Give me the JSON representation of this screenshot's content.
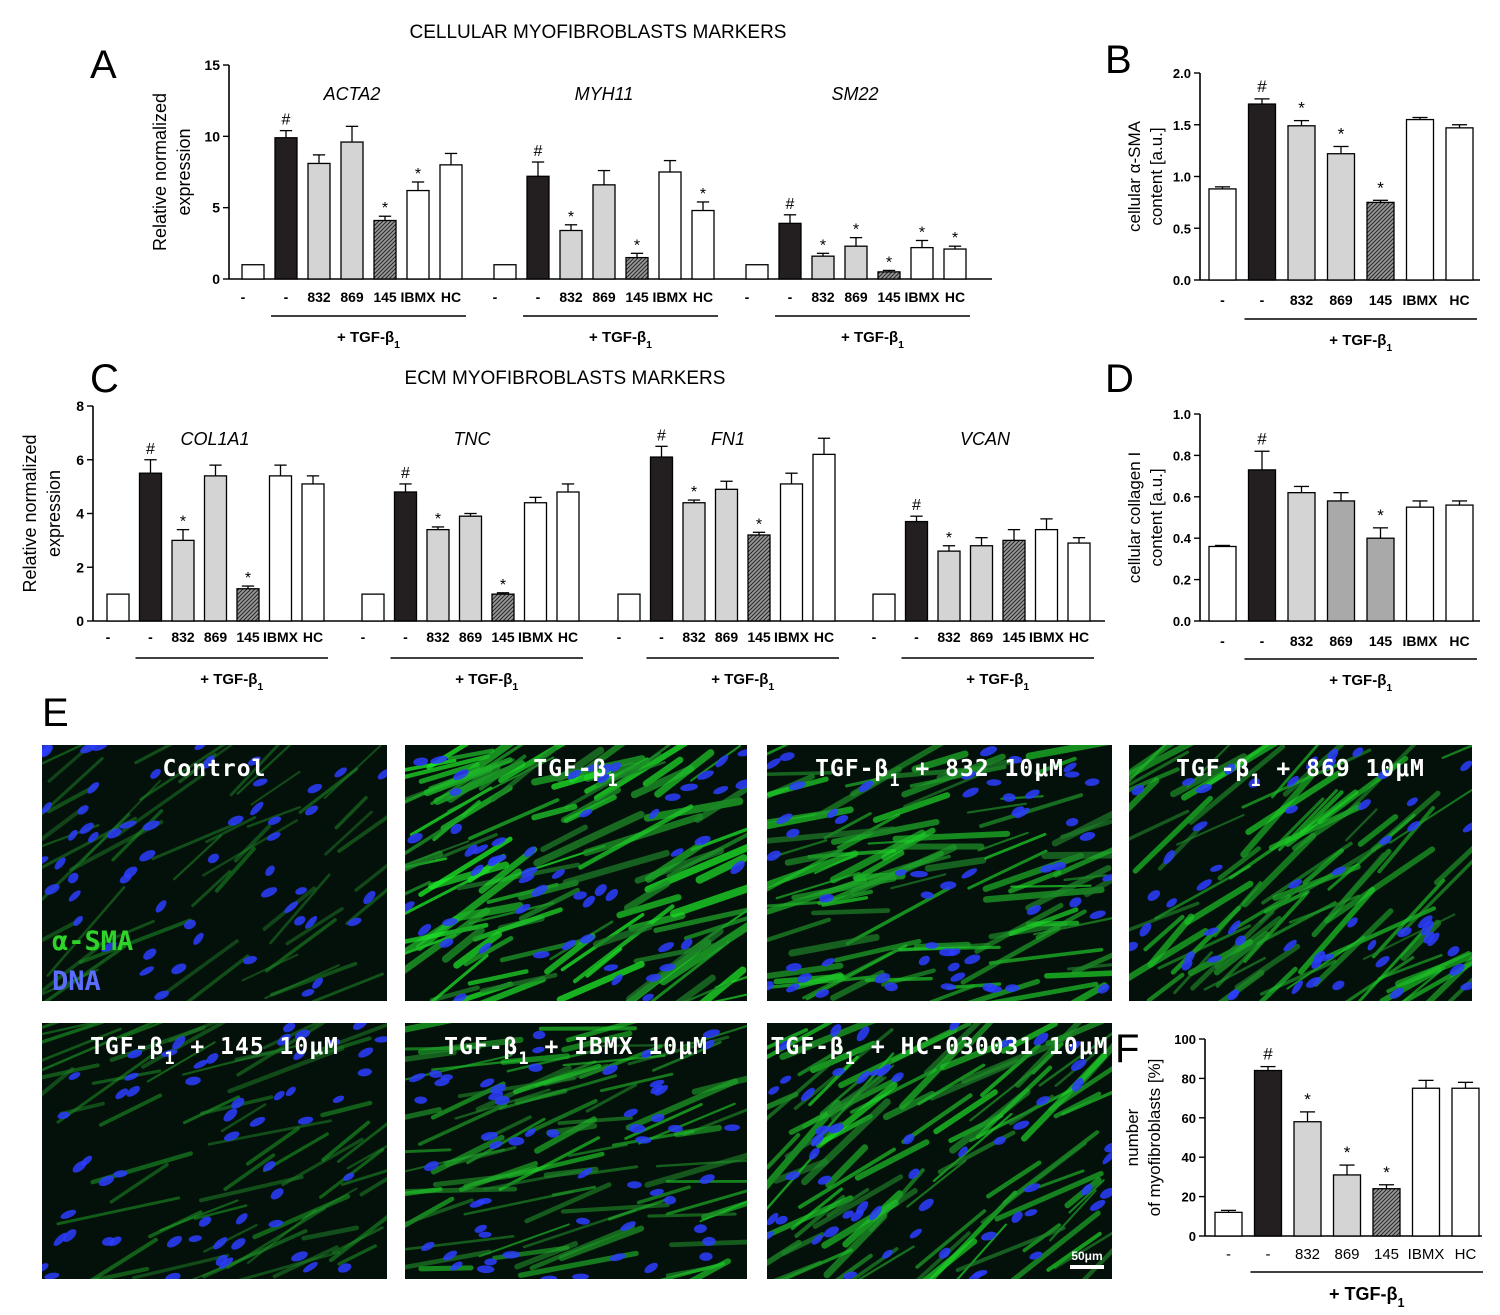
{
  "figure": {
    "section_titles": {
      "cellular": "CELLULAR MYOFIBROBLASTS MARKERS",
      "ecm": "ECM MYOFIBROBLASTS MARKERS"
    },
    "panel_letters": {
      "A": "A",
      "B": "B",
      "C": "C",
      "D": "D",
      "E": "E",
      "F": "F"
    },
    "group_label": "+ TGF-β",
    "group_label_sub": "1",
    "colors": {
      "control": "#ffffff",
      "tgf": "#231f20",
      "light_grey": "#d4d4d4",
      "mid_grey": "#a9a9a9",
      "hatched": "#5a5a5a",
      "fluor_green": "#2fd32a",
      "fluor_blue": "#2b3dff",
      "stroke": "#000000"
    }
  },
  "chart_data": [
    {
      "id": "A",
      "type": "bar",
      "ylabel": "Relative normalized\nexpression",
      "ylim": [
        0,
        15
      ],
      "yticks": [
        0,
        5,
        10,
        15
      ],
      "categories": [
        "-",
        "-",
        "832",
        "869",
        "145",
        "IBMX",
        "HC"
      ],
      "series": [
        {
          "name": "ACTA2",
          "values": [
            1,
            9.9,
            8.1,
            9.6,
            4.1,
            6.2,
            8.0
          ],
          "errors": [
            0,
            0.5,
            0.6,
            1.1,
            0.3,
            0.6,
            0.8
          ],
          "marks": [
            "",
            "#",
            "",
            "",
            "*",
            "*",
            ""
          ]
        },
        {
          "name": "MYH11",
          "values": [
            1,
            7.2,
            3.4,
            6.6,
            1.5,
            7.5,
            4.8
          ],
          "errors": [
            0,
            1.0,
            0.4,
            1.0,
            0.3,
            0.8,
            0.6
          ],
          "marks": [
            "",
            "#",
            "*",
            "",
            "*",
            "",
            "*"
          ]
        },
        {
          "name": "SM22",
          "values": [
            1,
            3.9,
            1.6,
            2.3,
            0.5,
            2.2,
            2.1
          ],
          "errors": [
            0,
            0.6,
            0.2,
            0.6,
            0.1,
            0.5,
            0.2
          ],
          "marks": [
            "",
            "#",
            "*",
            "*",
            "*",
            "*",
            "*"
          ]
        }
      ]
    },
    {
      "id": "B",
      "type": "bar",
      "ylabel": "cellular α-SMA\ncontent [a.u.]",
      "ylim": [
        0,
        2.0
      ],
      "yticks": [
        "0.0",
        "0.5",
        "1.0",
        "1.5",
        "2.0"
      ],
      "categories": [
        "-",
        "-",
        "832",
        "869",
        "145",
        "IBMX",
        "HC"
      ],
      "values": [
        0.88,
        1.7,
        1.49,
        1.22,
        0.75,
        1.55,
        1.47
      ],
      "errors": [
        0.02,
        0.05,
        0.05,
        0.07,
        0.02,
        0.02,
        0.03
      ],
      "marks": [
        "",
        "#",
        "*",
        "*",
        "*",
        "",
        ""
      ]
    },
    {
      "id": "C",
      "type": "bar",
      "ylabel": "Relative normalized\nexpression",
      "ylim": [
        0,
        8
      ],
      "yticks": [
        0,
        2,
        4,
        6,
        8
      ],
      "categories": [
        "-",
        "-",
        "832",
        "869",
        "145",
        "IBMX",
        "HC"
      ],
      "series": [
        {
          "name": "COL1A1",
          "values": [
            1,
            5.5,
            3.0,
            5.4,
            1.2,
            5.4,
            5.1
          ],
          "errors": [
            0,
            0.5,
            0.4,
            0.4,
            0.1,
            0.4,
            0.3
          ],
          "marks": [
            "",
            "#",
            "*",
            "",
            "*",
            "",
            ""
          ]
        },
        {
          "name": "TNC",
          "values": [
            1,
            4.8,
            3.4,
            3.9,
            1.0,
            4.4,
            4.8
          ],
          "errors": [
            0,
            0.3,
            0.1,
            0.1,
            0.05,
            0.2,
            0.3
          ],
          "marks": [
            "",
            "#",
            "*",
            "",
            "*",
            "",
            ""
          ]
        },
        {
          "name": "FN1",
          "values": [
            1,
            6.1,
            4.4,
            4.9,
            3.2,
            5.1,
            6.2
          ],
          "errors": [
            0,
            0.4,
            0.1,
            0.3,
            0.1,
            0.4,
            0.6
          ],
          "marks": [
            "",
            "#",
            "*",
            "",
            "*",
            "",
            ""
          ]
        },
        {
          "name": "VCAN",
          "values": [
            1,
            3.7,
            2.6,
            2.8,
            3.0,
            3.4,
            2.9
          ],
          "errors": [
            0,
            0.2,
            0.2,
            0.3,
            0.4,
            0.4,
            0.2
          ],
          "marks": [
            "",
            "#",
            "*",
            "",
            "",
            "",
            ""
          ]
        }
      ]
    },
    {
      "id": "D",
      "type": "bar",
      "ylabel": "cellular collagen I\ncontent [a.u.]",
      "ylim": [
        0,
        1.0
      ],
      "yticks": [
        "0.0",
        "0.2",
        "0.4",
        "0.6",
        "0.8",
        "1.0"
      ],
      "categories": [
        "-",
        "-",
        "832",
        "869",
        "145",
        "IBMX",
        "HC"
      ],
      "values": [
        0.36,
        0.73,
        0.62,
        0.58,
        0.4,
        0.55,
        0.56
      ],
      "errors": [
        0.005,
        0.09,
        0.03,
        0.04,
        0.05,
        0.03,
        0.02
      ],
      "marks": [
        "",
        "#",
        "",
        "",
        "*",
        "",
        ""
      ]
    },
    {
      "id": "F",
      "type": "bar",
      "ylabel": "number\nof myofibroblasts [%]",
      "ylim": [
        0,
        100
      ],
      "yticks": [
        0,
        20,
        40,
        60,
        80,
        100
      ],
      "categories": [
        "-",
        "-",
        "832",
        "869",
        "145",
        "IBMX",
        "HC"
      ],
      "values": [
        12,
        84,
        58,
        31,
        24,
        75,
        75
      ],
      "errors": [
        1,
        2,
        5,
        5,
        2,
        4,
        3
      ],
      "marks": [
        "",
        "#",
        "*",
        "*",
        "*",
        "",
        ""
      ]
    }
  ],
  "micrographs": [
    {
      "title": "Control",
      "sub": "",
      "rest": "",
      "labels": [
        "α-SMA",
        "DNA"
      ],
      "intensity": 0.35
    },
    {
      "title": "TGF-β",
      "sub": "1",
      "rest": "",
      "labels": [],
      "intensity": 1.0
    },
    {
      "title": "TGF-β",
      "sub": "1",
      "rest": " + 832 10μM",
      "labels": [],
      "intensity": 0.85
    },
    {
      "title": "TGF-β",
      "sub": "1",
      "rest": " + 869 10μM",
      "labels": [],
      "intensity": 0.8
    },
    {
      "title": "TGF-β",
      "sub": "1",
      "rest": " + 145 10μM",
      "labels": [],
      "intensity": 0.45
    },
    {
      "title": "TGF-β",
      "sub": "1",
      "rest": " + IBMX 10μM",
      "labels": [],
      "intensity": 0.75
    },
    {
      "title": "TGF-β",
      "sub": "1",
      "rest": " + HC-030031 10μM",
      "labels": [],
      "intensity": 0.85
    }
  ],
  "scale_bar": "50μm"
}
